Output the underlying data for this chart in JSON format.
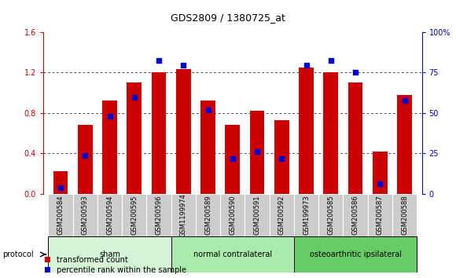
{
  "title": "GDS2809 / 1380725_at",
  "samples": [
    "GSM200584",
    "GSM200593",
    "GSM200594",
    "GSM200595",
    "GSM200596",
    "GSM1199974",
    "GSM200589",
    "GSM200590",
    "GSM200591",
    "GSM200592",
    "GSM199973",
    "GSM200585",
    "GSM200586",
    "GSM200587",
    "GSM200588"
  ],
  "red_values": [
    0.22,
    0.68,
    0.92,
    1.1,
    1.2,
    1.23,
    0.92,
    0.68,
    0.82,
    0.73,
    1.25,
    1.2,
    1.1,
    0.42,
    0.98
  ],
  "blue_values": [
    0.06,
    0.38,
    0.77,
    0.95,
    1.32,
    1.27,
    0.83,
    0.35,
    0.42,
    0.35,
    1.27,
    1.32,
    1.2,
    0.1,
    0.92
  ],
  "groups": [
    {
      "label": "sham",
      "start": 0,
      "end": 5
    },
    {
      "label": "normal contralateral",
      "start": 5,
      "end": 10
    },
    {
      "label": "osteoarthritic ipsilateral",
      "start": 10,
      "end": 15
    }
  ],
  "group_colors": [
    "#d6f5d6",
    "#aaeaaa",
    "#66cc66"
  ],
  "ylim_left": [
    0,
    1.6
  ],
  "ylim_right": [
    0,
    100
  ],
  "yticks_left": [
    0,
    0.4,
    0.8,
    1.2,
    1.6
  ],
  "yticks_right": [
    0,
    25,
    50,
    75,
    100
  ],
  "bar_color": "#cc0000",
  "marker_color": "#0000cc",
  "cell_color": "#cccccc",
  "protocol_label": "protocol",
  "legend_red": "transformed count",
  "legend_blue": "percentile rank within the sample",
  "title_fontsize": 9,
  "tick_fontsize": 7,
  "label_fontsize": 6
}
